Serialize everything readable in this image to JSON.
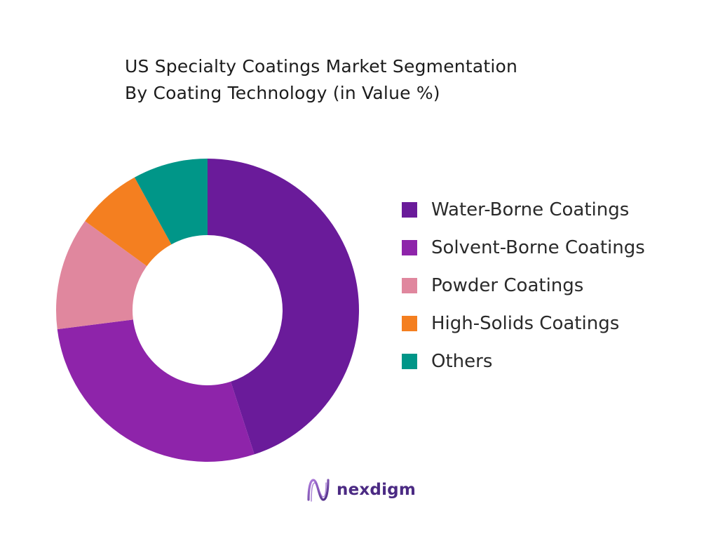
{
  "chart_data": {
    "type": "pie",
    "variant": "donut",
    "title_lines": [
      "US Specialty Coatings Market Segmentation",
      "By Coating Technology (in Value %)"
    ],
    "categories": [
      "Water-Borne Coatings",
      "Solvent-Borne Coatings",
      "Powder Coatings",
      "High-Solids Coatings",
      "Others"
    ],
    "values": [
      45,
      28,
      12,
      7,
      8
    ],
    "colors": [
      "#6a1b9a",
      "#8e24aa",
      "#e0879e",
      "#f47f20",
      "#009688"
    ],
    "legend_position": "right"
  },
  "brand": {
    "name": "nexdigm",
    "color": "#4b2a83"
  }
}
